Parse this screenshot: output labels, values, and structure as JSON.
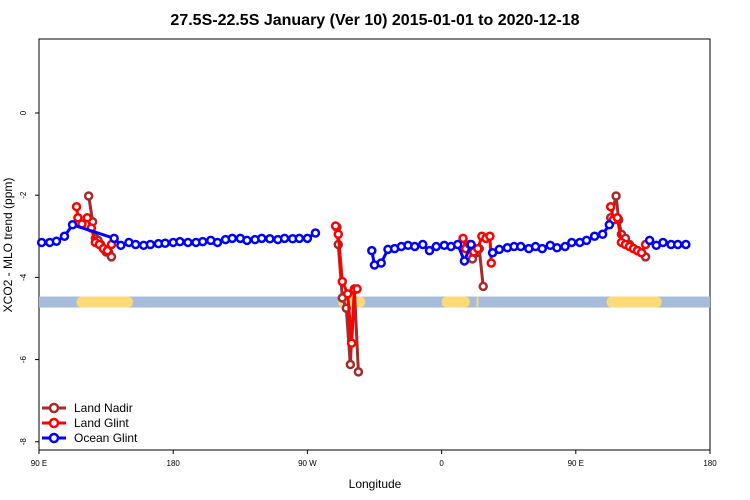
{
  "chart_data": {
    "type": "line",
    "title": "27.5S-22.5S January (Ver 10)   2015-01-01 to 2020-12-18",
    "xlabel": "Longitude",
    "ylabel": "XCO2 - MLO trend (ppm)",
    "xlim": [
      0,
      10
    ],
    "ylim": [
      -8.2,
      1.8
    ],
    "x_ticks": [
      {
        "value": 0,
        "label": "90 E"
      },
      {
        "value": 2,
        "label": "180"
      },
      {
        "value": 4,
        "label": "90 W"
      },
      {
        "value": 6,
        "label": "0"
      },
      {
        "value": 8,
        "label": "90 E"
      },
      {
        "value": 10,
        "label": "180"
      }
    ],
    "y_ticks": [
      {
        "value": 0,
        "label": "0"
      },
      {
        "value": -2,
        "label": "-2"
      },
      {
        "value": -4,
        "label": "-4"
      },
      {
        "value": -6,
        "label": "-6"
      },
      {
        "value": -8,
        "label": "-8"
      }
    ],
    "series": [
      {
        "name": "Land Nadir",
        "color": "#A52A2A",
        "segments": [
          [
            [
              0.74,
              -2.02
            ],
            [
              0.8,
              -2.65
            ],
            [
              0.84,
              -3.05
            ],
            [
              0.88,
              -3.1
            ],
            [
              0.92,
              -3.2
            ],
            [
              0.96,
              -3.3
            ],
            [
              1.0,
              -3.38
            ],
            [
              1.04,
              -3.4
            ],
            [
              1.08,
              -3.5
            ]
          ],
          [
            [
              4.44,
              -2.78
            ],
            [
              4.46,
              -3.2
            ],
            [
              4.52,
              -4.5
            ],
            [
              4.58,
              -4.75
            ],
            [
              4.64,
              -6.12
            ],
            [
              4.7,
              -4.28
            ],
            [
              4.76,
              -6.3
            ]
          ],
          [
            [
              6.4,
              -3.25
            ],
            [
              6.46,
              -3.55
            ],
            [
              6.52,
              -3.4
            ],
            [
              6.56,
              -3.3
            ],
            [
              6.62,
              -4.22
            ]
          ],
          [
            [
              8.52,
              -2.55
            ],
            [
              8.6,
              -2.02
            ],
            [
              8.64,
              -2.6
            ],
            [
              8.68,
              -2.95
            ],
            [
              8.74,
              -3.05
            ],
            [
              8.8,
              -3.2
            ],
            [
              8.86,
              -3.3
            ],
            [
              8.92,
              -3.35
            ],
            [
              8.98,
              -3.4
            ],
            [
              9.04,
              -3.5
            ]
          ]
        ]
      },
      {
        "name": "Land Glint",
        "color": "#FF0000",
        "segments": [
          [
            [
              0.56,
              -2.28
            ],
            [
              0.58,
              -2.55
            ],
            [
              0.64,
              -2.7
            ],
            [
              0.72,
              -2.55
            ],
            [
              0.78,
              -2.8
            ],
            [
              0.84,
              -3.15
            ],
            [
              0.9,
              -3.2
            ],
            [
              0.96,
              -3.3
            ],
            [
              1.02,
              -3.35
            ],
            [
              1.08,
              -3.2
            ]
          ],
          [
            [
              4.42,
              -2.75
            ],
            [
              4.46,
              -2.95
            ],
            [
              4.52,
              -4.1
            ],
            [
              4.6,
              -4.4
            ],
            [
              4.66,
              -5.6
            ],
            [
              4.7,
              -4.3
            ],
            [
              4.74,
              -4.28
            ]
          ],
          [
            [
              6.32,
              -3.05
            ],
            [
              6.36,
              -3.3
            ],
            [
              6.42,
              -3.2
            ],
            [
              6.48,
              -3.38
            ],
            [
              6.54,
              -3.3
            ],
            [
              6.6,
              -3.0
            ],
            [
              6.66,
              -3.05
            ],
            [
              6.72,
              -3.0
            ],
            [
              6.74,
              -3.65
            ]
          ],
          [
            [
              8.52,
              -2.28
            ],
            [
              8.56,
              -2.6
            ],
            [
              8.62,
              -2.55
            ],
            [
              8.68,
              -3.15
            ],
            [
              8.74,
              -3.2
            ],
            [
              8.8,
              -3.25
            ],
            [
              8.86,
              -3.3
            ],
            [
              8.92,
              -3.35
            ],
            [
              8.98,
              -3.4
            ],
            [
              9.04,
              -3.2
            ]
          ]
        ]
      },
      {
        "name": "Ocean Glint",
        "color": "#0000FF",
        "segments": [
          [
            [
              0.04,
              -3.15
            ],
            [
              0.16,
              -3.15
            ],
            [
              0.26,
              -3.12
            ],
            [
              0.38,
              -3.0
            ],
            [
              0.5,
              -2.72
            ],
            [
              1.12,
              -3.05
            ],
            [
              1.22,
              -3.22
            ],
            [
              1.34,
              -3.15
            ],
            [
              1.44,
              -3.2
            ],
            [
              1.56,
              -3.22
            ],
            [
              1.66,
              -3.2
            ],
            [
              1.78,
              -3.18
            ],
            [
              1.88,
              -3.17
            ],
            [
              2.0,
              -3.15
            ],
            [
              2.1,
              -3.13
            ],
            [
              2.22,
              -3.15
            ],
            [
              2.34,
              -3.15
            ],
            [
              2.44,
              -3.13
            ],
            [
              2.56,
              -3.1
            ],
            [
              2.66,
              -3.15
            ],
            [
              2.78,
              -3.08
            ],
            [
              2.88,
              -3.05
            ],
            [
              3.0,
              -3.05
            ],
            [
              3.1,
              -3.1
            ],
            [
              3.22,
              -3.08
            ],
            [
              3.32,
              -3.05
            ],
            [
              3.44,
              -3.06
            ],
            [
              3.56,
              -3.08
            ],
            [
              3.66,
              -3.05
            ],
            [
              3.78,
              -3.06
            ],
            [
              3.88,
              -3.05
            ],
            [
              4.0,
              -3.05
            ],
            [
              4.12,
              -2.92
            ]
          ],
          [
            [
              4.96,
              -3.35
            ],
            [
              5.0,
              -3.7
            ],
            [
              5.1,
              -3.65
            ],
            [
              5.2,
              -3.32
            ],
            [
              5.3,
              -3.3
            ],
            [
              5.4,
              -3.25
            ],
            [
              5.5,
              -3.22
            ],
            [
              5.6,
              -3.25
            ],
            [
              5.72,
              -3.2
            ],
            [
              5.82,
              -3.35
            ],
            [
              5.92,
              -3.25
            ],
            [
              6.04,
              -3.22
            ],
            [
              6.14,
              -3.25
            ],
            [
              6.24,
              -3.2
            ],
            [
              6.34,
              -3.6
            ],
            [
              6.44,
              -3.2
            ]
          ],
          [
            [
              6.76,
              -3.4
            ],
            [
              6.86,
              -3.32
            ],
            [
              6.98,
              -3.28
            ],
            [
              7.08,
              -3.25
            ],
            [
              7.18,
              -3.25
            ],
            [
              7.3,
              -3.3
            ],
            [
              7.4,
              -3.25
            ],
            [
              7.5,
              -3.3
            ],
            [
              7.62,
              -3.22
            ],
            [
              7.72,
              -3.28
            ],
            [
              7.84,
              -3.25
            ],
            [
              7.94,
              -3.15
            ],
            [
              8.06,
              -3.15
            ],
            [
              8.16,
              -3.1
            ],
            [
              8.28,
              -3.0
            ],
            [
              8.4,
              -2.95
            ],
            [
              8.5,
              -2.72
            ]
          ],
          [
            [
              9.1,
              -3.1
            ],
            [
              9.2,
              -3.22
            ],
            [
              9.3,
              -3.15
            ],
            [
              9.42,
              -3.2
            ],
            [
              9.52,
              -3.2
            ],
            [
              9.64,
              -3.2
            ]
          ]
        ]
      }
    ],
    "landmask": {
      "y": -4.6,
      "ocean_color": "#A7BCDB",
      "land_color": "#FCDA77",
      "land_spans": [
        [
          0.56,
          1.4
        ],
        [
          4.46,
          4.86
        ],
        [
          6.0,
          6.42
        ],
        [
          6.52,
          6.54
        ],
        [
          8.46,
          9.28
        ]
      ]
    },
    "legend": {
      "position": "bottom-left"
    }
  }
}
